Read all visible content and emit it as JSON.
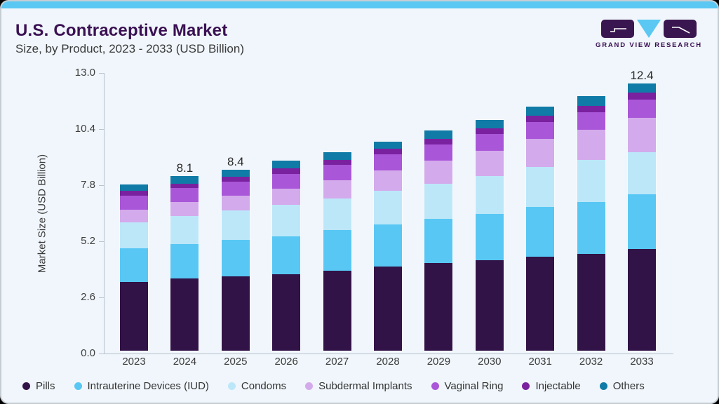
{
  "page": {
    "background": "#000000",
    "card_bg": "#f0f6fb",
    "accent_color": "#5ac8f3",
    "title_color": "#3a1053"
  },
  "header": {
    "title": "U.S. Contraceptive Market",
    "subtitle": "Size, by Product, 2023 - 2033 (USD Billion)",
    "logo": {
      "brand": "GRAND VIEW RESEARCH",
      "block_color": "#3a1650",
      "triangle_color": "#5ac8f3"
    }
  },
  "chart_data": {
    "type": "bar",
    "stacked": true,
    "title": "U.S. Contraceptive Market",
    "subtitle": "Size, by Product, 2023 - 2033 (USD Billion)",
    "ylabel": "Market Size (USD Billion)",
    "xlabel": "",
    "categories": [
      "2023",
      "2024",
      "2025",
      "2026",
      "2027",
      "2028",
      "2029",
      "2030",
      "2031",
      "2032",
      "2033"
    ],
    "ytick_labels": [
      "0.0",
      "2.6",
      "5.2",
      "7.8",
      "10.4",
      "13.0"
    ],
    "ylim": [
      0,
      13.0
    ],
    "grid": false,
    "legend_position": "bottom",
    "axis_color": "#b9c4cd",
    "series": [
      {
        "name": "Pills",
        "color": "#321347",
        "values": [
          3.2,
          3.35,
          3.45,
          3.55,
          3.7,
          3.9,
          4.05,
          4.2,
          4.35,
          4.5,
          4.7
        ]
      },
      {
        "name": "Intrauterine Devices (IUD)",
        "color": "#58c7f4",
        "values": [
          1.55,
          1.6,
          1.7,
          1.75,
          1.9,
          1.95,
          2.05,
          2.15,
          2.3,
          2.4,
          2.55
        ]
      },
      {
        "name": "Condoms",
        "color": "#bce7f9",
        "values": [
          1.2,
          1.3,
          1.35,
          1.45,
          1.45,
          1.55,
          1.65,
          1.75,
          1.85,
          1.95,
          1.95
        ]
      },
      {
        "name": "Subdermal Implants",
        "color": "#d3aaeb",
        "values": [
          0.6,
          0.65,
          0.7,
          0.75,
          0.85,
          0.95,
          1.05,
          1.15,
          1.3,
          1.4,
          1.6
        ]
      },
      {
        "name": "Vaginal Ring",
        "color": "#a956d8",
        "values": [
          0.65,
          0.65,
          0.65,
          0.7,
          0.7,
          0.75,
          0.75,
          0.8,
          0.8,
          0.8,
          0.85
        ]
      },
      {
        "name": "Injectable",
        "color": "#7a21a0",
        "values": [
          0.2,
          0.2,
          0.2,
          0.25,
          0.25,
          0.25,
          0.25,
          0.25,
          0.3,
          0.3,
          0.3
        ]
      },
      {
        "name": "Others",
        "color": "#107ba6",
        "values": [
          0.3,
          0.35,
          0.35,
          0.35,
          0.35,
          0.35,
          0.4,
          0.4,
          0.4,
          0.45,
          0.45
        ]
      }
    ],
    "bar_labels": [
      {
        "category": "2024",
        "text": "8.1"
      },
      {
        "category": "2025",
        "text": "8.4"
      },
      {
        "category": "2033",
        "text": "12.4"
      }
    ]
  }
}
